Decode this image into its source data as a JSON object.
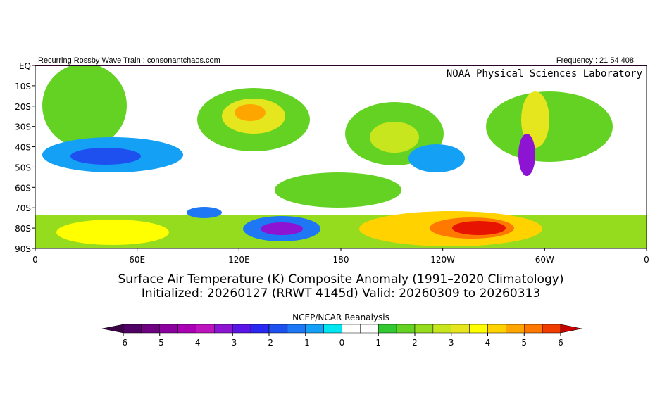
{
  "header": {
    "left": "Recurring Rossby Wave Train : consonantchaos.com",
    "right": "Frequency : 21 54 408",
    "credit": "NOAA Physical Sciences Laboratory"
  },
  "map": {
    "lat_labels": [
      "EQ",
      "10S",
      "20S",
      "30S",
      "40S",
      "50S",
      "60S",
      "70S",
      "80S",
      "90S"
    ],
    "lon_labels": [
      "0",
      "60E",
      "120E",
      "180",
      "120W",
      "60W",
      "0"
    ]
  },
  "title": {
    "line1": "Surface Air Temperature (K) Composite Anomaly (1991–2020 Climatology)",
    "line2": "Initialized: 20260127 (RRWT 4145d) Valid: 20260309 to 20260313"
  },
  "colorbar": {
    "label": "NCEP/NCAR Reanalysis",
    "ticks": [
      -6,
      -5,
      -4,
      -3,
      -2,
      -1,
      0,
      1,
      2,
      3,
      4,
      5,
      6
    ],
    "step": 0.5,
    "low_color": "#3c0046",
    "high_color": "#c80000",
    "colors": [
      "#500064",
      "#6e0082",
      "#8c00a0",
      "#aa00b4",
      "#be14be",
      "#8c14d2",
      "#5a14e6",
      "#2828f0",
      "#1e50f0",
      "#1e78f5",
      "#14a0f5",
      "#00e6f0",
      "#ffffff",
      "#ffffff",
      "#32c832",
      "#64d223",
      "#96dc1e",
      "#c8e61e",
      "#e6e61e",
      "#ffff00",
      "#ffd200",
      "#ffa500",
      "#ff7800",
      "#f03c00"
    ]
  }
}
